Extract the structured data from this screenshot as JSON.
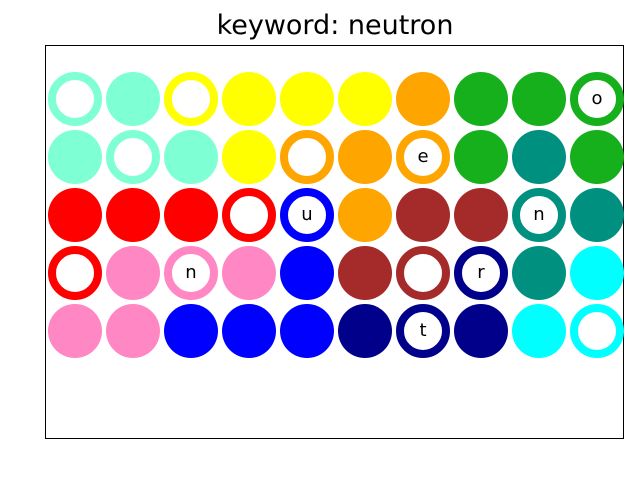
{
  "title": "keyword: neutron",
  "colors": {
    "aquamarine": "#7fffd4",
    "yellow": "#ffff00",
    "orange": "#ffa500",
    "green": "#17b01d",
    "teal": "#009080",
    "red": "#ff0000",
    "brown": "#a52a2a",
    "blue": "#0000ff",
    "pink": "#ff88c4",
    "navy": "#00008b",
    "cyan": "#00ffff"
  },
  "grid": [
    [
      {
        "color": "aquamarine",
        "hollow": true,
        "letter": ""
      },
      {
        "color": "aquamarine",
        "hollow": false,
        "letter": ""
      },
      {
        "color": "yellow",
        "hollow": true,
        "letter": ""
      },
      {
        "color": "yellow",
        "hollow": false,
        "letter": ""
      },
      {
        "color": "yellow",
        "hollow": false,
        "letter": ""
      },
      {
        "color": "yellow",
        "hollow": false,
        "letter": ""
      },
      {
        "color": "orange",
        "hollow": false,
        "letter": ""
      },
      {
        "color": "green",
        "hollow": false,
        "letter": ""
      },
      {
        "color": "green",
        "hollow": false,
        "letter": ""
      },
      {
        "color": "green",
        "hollow": true,
        "letter": "o"
      }
    ],
    [
      {
        "color": "aquamarine",
        "hollow": false,
        "letter": ""
      },
      {
        "color": "aquamarine",
        "hollow": true,
        "letter": ""
      },
      {
        "color": "aquamarine",
        "hollow": false,
        "letter": ""
      },
      {
        "color": "yellow",
        "hollow": false,
        "letter": ""
      },
      {
        "color": "orange",
        "hollow": true,
        "letter": ""
      },
      {
        "color": "orange",
        "hollow": false,
        "letter": ""
      },
      {
        "color": "orange",
        "hollow": true,
        "letter": "e"
      },
      {
        "color": "green",
        "hollow": false,
        "letter": ""
      },
      {
        "color": "teal",
        "hollow": false,
        "letter": ""
      },
      {
        "color": "green",
        "hollow": false,
        "letter": ""
      }
    ],
    [
      {
        "color": "red",
        "hollow": false,
        "letter": ""
      },
      {
        "color": "red",
        "hollow": false,
        "letter": ""
      },
      {
        "color": "red",
        "hollow": false,
        "letter": ""
      },
      {
        "color": "red",
        "hollow": true,
        "letter": ""
      },
      {
        "color": "blue",
        "hollow": true,
        "letter": "u"
      },
      {
        "color": "orange",
        "hollow": false,
        "letter": ""
      },
      {
        "color": "brown",
        "hollow": false,
        "letter": ""
      },
      {
        "color": "brown",
        "hollow": false,
        "letter": ""
      },
      {
        "color": "teal",
        "hollow": true,
        "letter": "n"
      },
      {
        "color": "teal",
        "hollow": false,
        "letter": ""
      }
    ],
    [
      {
        "color": "red",
        "hollow": true,
        "letter": ""
      },
      {
        "color": "pink",
        "hollow": false,
        "letter": ""
      },
      {
        "color": "pink",
        "hollow": true,
        "letter": "n"
      },
      {
        "color": "pink",
        "hollow": false,
        "letter": ""
      },
      {
        "color": "blue",
        "hollow": false,
        "letter": ""
      },
      {
        "color": "brown",
        "hollow": false,
        "letter": ""
      },
      {
        "color": "brown",
        "hollow": true,
        "letter": ""
      },
      {
        "color": "navy",
        "hollow": true,
        "letter": "r"
      },
      {
        "color": "teal",
        "hollow": false,
        "letter": ""
      },
      {
        "color": "cyan",
        "hollow": false,
        "letter": ""
      }
    ],
    [
      {
        "color": "pink",
        "hollow": false,
        "letter": ""
      },
      {
        "color": "pink",
        "hollow": false,
        "letter": ""
      },
      {
        "color": "blue",
        "hollow": false,
        "letter": ""
      },
      {
        "color": "blue",
        "hollow": false,
        "letter": ""
      },
      {
        "color": "blue",
        "hollow": false,
        "letter": ""
      },
      {
        "color": "navy",
        "hollow": false,
        "letter": ""
      },
      {
        "color": "navy",
        "hollow": true,
        "letter": "t"
      },
      {
        "color": "navy",
        "hollow": false,
        "letter": ""
      },
      {
        "color": "cyan",
        "hollow": false,
        "letter": ""
      },
      {
        "color": "cyan",
        "hollow": true,
        "letter": ""
      }
    ]
  ]
}
